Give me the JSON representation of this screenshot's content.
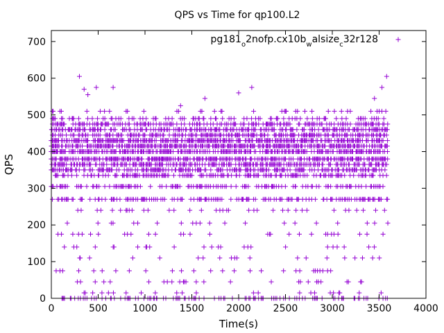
{
  "chart_data": {
    "type": "scatter",
    "title": "QPS vs Time for qp100.L2",
    "xlabel": "Time(s)",
    "ylabel": "QPS",
    "xlim": [
      0,
      4000
    ],
    "ylim": [
      0,
      730
    ],
    "xticks": [
      0,
      500,
      1000,
      1500,
      2000,
      2500,
      3000,
      3500,
      4000
    ],
    "yticks": [
      0,
      100,
      200,
      300,
      400,
      500,
      600,
      700
    ],
    "grid": false,
    "legend_position": "top-right",
    "marker": "+",
    "color": "#9400d3",
    "series": [
      {
        "name": "pg181_o2nofp.cx10b_walsize_c32r128",
        "legend_parts": [
          "pg181",
          "o",
          "2nofp.cx10b",
          "w",
          "alsize",
          "c",
          "32r128"
        ],
        "levels": [
          0,
          15,
          45,
          75,
          110,
          140,
          175,
          205,
          240,
          270,
          305,
          335,
          350,
          365,
          380,
          400,
          415,
          430,
          445,
          460,
          475,
          490,
          510
        ],
        "level_density": [
          0.28,
          0.06,
          0.06,
          0.06,
          0.06,
          0.07,
          0.07,
          0.08,
          0.1,
          0.35,
          0.38,
          0.42,
          0.5,
          0.6,
          0.62,
          0.7,
          0.72,
          0.7,
          0.55,
          0.5,
          0.42,
          0.25,
          0.08
        ],
        "x_start": 0,
        "x_end": 3590,
        "x_step": 10,
        "sparse_points": [
          {
            "x": 300,
            "y": 605
          },
          {
            "x": 350,
            "y": 570
          },
          {
            "x": 390,
            "y": 555
          },
          {
            "x": 480,
            "y": 575
          },
          {
            "x": 660,
            "y": 575
          },
          {
            "x": 1380,
            "y": 525
          },
          {
            "x": 1640,
            "y": 545
          },
          {
            "x": 2000,
            "y": 560
          },
          {
            "x": 2140,
            "y": 575
          },
          {
            "x": 3450,
            "y": 545
          },
          {
            "x": 3530,
            "y": 575
          },
          {
            "x": 3580,
            "y": 605
          },
          {
            "x": 3690,
            "y": 705
          }
        ]
      }
    ]
  }
}
